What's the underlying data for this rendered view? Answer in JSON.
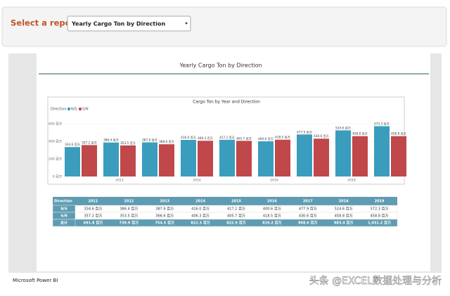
{
  "header": {
    "select_label": "Select a report:",
    "selected_report": "Yearly Cargo Ton by Direction"
  },
  "report_title": "Yearly Cargo Ton by Direction",
  "chart_data": {
    "type": "bar",
    "title": "Cargo Ton by Year and Direction",
    "legend_title": "Direction",
    "categories": [
      null,
      "2012",
      null,
      "2014",
      null,
      "2016",
      null,
      "2018",
      null
    ],
    "series": [
      {
        "name": "N/S",
        "color": "#3a9dbd",
        "values": [
          334.6,
          386.4,
          387.9,
          416.0,
          417.2,
          400.6,
          477.9,
          524.6,
          572.3
        ],
        "value_labels": [
          "334.6 百万",
          "386.4 百万",
          "387.9 百万",
          "416.0 百万",
          "417.2 百万",
          "400.6 百万",
          "477.9 百万",
          "524.6 百万",
          "572.3 百万"
        ]
      },
      {
        "name": "S/N",
        "color": "#c0474a",
        "values": [
          357.2,
          353.5,
          366.6,
          406.3,
          405.7,
          418.5,
          430.6,
          458.8,
          458.8
        ],
        "value_labels": [
          "357.2 百万",
          "353.5 百万",
          "366.6 百万",
          "406.3 百万",
          "405.7 百万",
          "418.5 百万",
          "430.6 百万",
          "458.8 百万",
          "458.8 百万"
        ]
      }
    ],
    "ylim": [
      0,
      600
    ],
    "yticks": [
      {
        "value": 0,
        "label": "0 百万"
      },
      {
        "value": 200,
        "label": "200 百万"
      },
      {
        "value": 400,
        "label": "400 百万"
      },
      {
        "value": 600,
        "label": "600 百万"
      }
    ]
  },
  "table": {
    "header": [
      "Direction",
      "2011",
      "2012",
      "2013",
      "2014",
      "2015",
      "2016",
      "2017",
      "2018",
      "2019"
    ],
    "rows": [
      [
        "N/S",
        "334.6 百万",
        "386.4 百万",
        "387.9 百万",
        "416.0 百万",
        "417.2 百万",
        "400.6 百万",
        "477.9 百万",
        "524.6 百万",
        "572.3 百万"
      ],
      [
        "S/N",
        "357.2 百万",
        "353.5 百万",
        "366.6 百万",
        "406.3 百万",
        "405.7 百万",
        "418.5 百万",
        "430.6 百万",
        "458.8 百万",
        "458.8 百万"
      ],
      [
        "总计",
        "691.8 百万",
        "739.9 百万",
        "754.5 百万",
        "822.3 百万",
        "822.9 百万",
        "819.2 百万",
        "908.6 百万",
        "983.4 百万",
        "1,031.2 百万"
      ]
    ]
  },
  "footer": "Microsoft Power BI",
  "watermark": "头条 @EXCEL数据处理与分析"
}
